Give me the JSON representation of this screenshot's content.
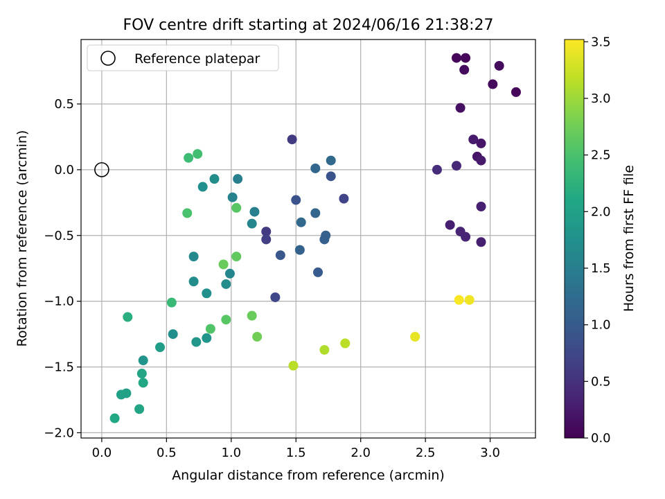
{
  "chart_data": {
    "type": "scatter",
    "title": "FOV centre drift starting at 2024/06/16 21:38:27",
    "xlabel": "Angular distance from reference (arcmin)",
    "ylabel": "Rotation from reference (arcmin)",
    "xlim": [
      -0.16,
      3.35
    ],
    "ylim": [
      -2.04,
      0.99
    ],
    "xticks": [
      0.0,
      0.5,
      1.0,
      1.5,
      2.0,
      2.5,
      3.0
    ],
    "xtick_labels": [
      "0.0",
      "0.5",
      "1.0",
      "1.5",
      "2.0",
      "2.5",
      "3.0"
    ],
    "yticks": [
      -2.0,
      -1.5,
      -1.0,
      -0.5,
      0.0,
      0.5
    ],
    "ytick_labels": [
      "−2.0",
      "−1.5",
      "−1.0",
      "−0.5",
      "0.0",
      "0.5"
    ],
    "grid": true,
    "legend": {
      "placement": "top-left",
      "entries": [
        "Reference platepar"
      ]
    },
    "reference_point": {
      "x": 0.0,
      "y": 0.0
    },
    "colorbar": {
      "label": "Hours from first FF file",
      "colormap": "viridis",
      "range": [
        0.0,
        3.52
      ],
      "ticks": [
        0.0,
        0.5,
        1.0,
        1.5,
        2.0,
        2.5,
        3.0,
        3.5
      ],
      "tick_labels": [
        "0.0",
        "0.5",
        "1.0",
        "1.5",
        "2.0",
        "2.5",
        "3.0",
        "3.5"
      ]
    },
    "points": [
      {
        "x": 2.74,
        "y": 0.85,
        "c": 0.05
      },
      {
        "x": 2.81,
        "y": 0.85,
        "c": 0.05
      },
      {
        "x": 3.07,
        "y": 0.79,
        "c": 0.1
      },
      {
        "x": 2.8,
        "y": 0.76,
        "c": 0.1
      },
      {
        "x": 3.02,
        "y": 0.65,
        "c": 0.1
      },
      {
        "x": 3.2,
        "y": 0.59,
        "c": 0.05
      },
      {
        "x": 2.77,
        "y": 0.47,
        "c": 0.15
      },
      {
        "x": 2.87,
        "y": 0.23,
        "c": 0.25
      },
      {
        "x": 2.93,
        "y": 0.2,
        "c": 0.2
      },
      {
        "x": 2.9,
        "y": 0.1,
        "c": 0.2
      },
      {
        "x": 2.93,
        "y": 0.07,
        "c": 0.25
      },
      {
        "x": 2.74,
        "y": 0.03,
        "c": 0.4
      },
      {
        "x": 2.59,
        "y": 0.0,
        "c": 0.45
      },
      {
        "x": 2.93,
        "y": -0.28,
        "c": 0.3
      },
      {
        "x": 2.69,
        "y": -0.42,
        "c": 0.3
      },
      {
        "x": 2.77,
        "y": -0.47,
        "c": 0.35
      },
      {
        "x": 2.81,
        "y": -0.51,
        "c": 0.35
      },
      {
        "x": 2.93,
        "y": -0.55,
        "c": 0.3
      },
      {
        "x": 1.47,
        "y": 0.23,
        "c": 0.6
      },
      {
        "x": 1.65,
        "y": 0.01,
        "c": 1.15
      },
      {
        "x": 1.77,
        "y": 0.07,
        "c": 1.2
      },
      {
        "x": 1.77,
        "y": -0.05,
        "c": 0.9
      },
      {
        "x": 1.87,
        "y": -0.22,
        "c": 0.7
      },
      {
        "x": 1.5,
        "y": -0.23,
        "c": 0.9
      },
      {
        "x": 1.65,
        "y": -0.33,
        "c": 1.15
      },
      {
        "x": 1.54,
        "y": -0.4,
        "c": 1.2
      },
      {
        "x": 1.27,
        "y": -0.47,
        "c": 0.6
      },
      {
        "x": 1.27,
        "y": -0.53,
        "c": 0.65
      },
      {
        "x": 1.73,
        "y": -0.5,
        "c": 1.1
      },
      {
        "x": 1.72,
        "y": -0.53,
        "c": 1.05
      },
      {
        "x": 1.53,
        "y": -0.61,
        "c": 1.1
      },
      {
        "x": 1.38,
        "y": -0.65,
        "c": 0.95
      },
      {
        "x": 1.67,
        "y": -0.78,
        "c": 1.0
      },
      {
        "x": 1.34,
        "y": -0.97,
        "c": 0.75
      },
      {
        "x": 1.05,
        "y": -0.07,
        "c": 1.5
      },
      {
        "x": 1.18,
        "y": -0.32,
        "c": 1.5
      },
      {
        "x": 1.16,
        "y": -0.41,
        "c": 1.6
      },
      {
        "x": 1.01,
        "y": -0.21,
        "c": 1.55
      },
      {
        "x": 0.87,
        "y": -0.07,
        "c": 1.7
      },
      {
        "x": 0.78,
        "y": -0.13,
        "c": 1.75
      },
      {
        "x": 0.99,
        "y": -0.79,
        "c": 1.6
      },
      {
        "x": 0.96,
        "y": -0.87,
        "c": 1.7
      },
      {
        "x": 0.71,
        "y": -0.66,
        "c": 1.65
      },
      {
        "x": 0.71,
        "y": -0.85,
        "c": 1.7
      },
      {
        "x": 0.81,
        "y": -0.94,
        "c": 1.75
      },
      {
        "x": 0.81,
        "y": -1.28,
        "c": 1.8
      },
      {
        "x": 0.73,
        "y": -1.31,
        "c": 1.85
      },
      {
        "x": 0.55,
        "y": -1.25,
        "c": 1.75
      },
      {
        "x": 0.32,
        "y": -1.45,
        "c": 1.8
      },
      {
        "x": 0.45,
        "y": -1.35,
        "c": 1.95
      },
      {
        "x": 0.31,
        "y": -1.55,
        "c": 2.05
      },
      {
        "x": 0.32,
        "y": -1.62,
        "c": 2.1
      },
      {
        "x": 0.19,
        "y": -1.7,
        "c": 2.0
      },
      {
        "x": 0.15,
        "y": -1.71,
        "c": 2.0
      },
      {
        "x": 0.29,
        "y": -1.82,
        "c": 2.05
      },
      {
        "x": 0.1,
        "y": -1.89,
        "c": 2.1
      },
      {
        "x": 0.2,
        "y": -1.12,
        "c": 2.2
      },
      {
        "x": 0.54,
        "y": -1.01,
        "c": 2.35
      },
      {
        "x": 0.67,
        "y": 0.09,
        "c": 2.4
      },
      {
        "x": 0.74,
        "y": 0.12,
        "c": 2.45
      },
      {
        "x": 0.66,
        "y": -0.33,
        "c": 2.5
      },
      {
        "x": 1.04,
        "y": -0.29,
        "c": 2.6
      },
      {
        "x": 1.04,
        "y": -0.66,
        "c": 2.65
      },
      {
        "x": 0.94,
        "y": -0.72,
        "c": 2.7
      },
      {
        "x": 0.84,
        "y": -1.21,
        "c": 2.55
      },
      {
        "x": 0.96,
        "y": -1.14,
        "c": 2.6
      },
      {
        "x": 1.16,
        "y": -1.11,
        "c": 2.7
      },
      {
        "x": 1.2,
        "y": -1.27,
        "c": 2.75
      },
      {
        "x": 1.48,
        "y": -1.49,
        "c": 3.15
      },
      {
        "x": 1.72,
        "y": -1.37,
        "c": 3.1
      },
      {
        "x": 1.88,
        "y": -1.32,
        "c": 3.15
      },
      {
        "x": 2.42,
        "y": -1.27,
        "c": 3.4
      },
      {
        "x": 2.76,
        "y": -0.99,
        "c": 3.5
      },
      {
        "x": 2.84,
        "y": -0.99,
        "c": 3.45
      }
    ]
  }
}
